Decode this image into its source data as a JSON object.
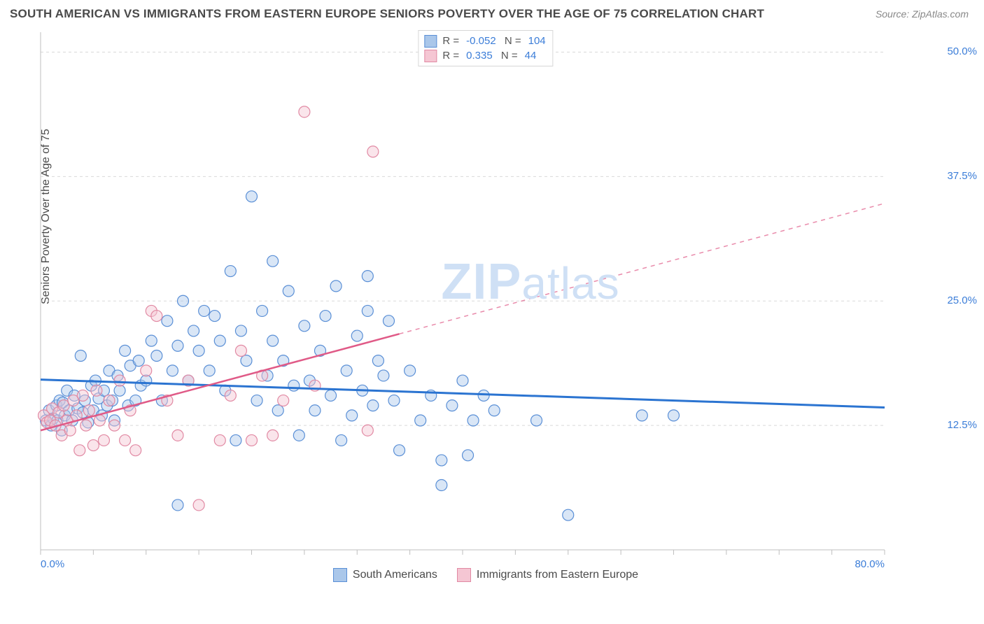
{
  "title": "SOUTH AMERICAN VS IMMIGRANTS FROM EASTERN EUROPE SENIORS POVERTY OVER THE AGE OF 75 CORRELATION CHART",
  "source": "Source: ZipAtlas.com",
  "watermark_bold": "ZIP",
  "watermark_rest": "atlas",
  "chart": {
    "type": "scatter",
    "background_color": "#ffffff",
    "grid_color": "#d9d9d9",
    "axis_color": "#bfbfbf",
    "tick_label_color": "#3b7dd8",
    "ylabel": "Seniors Poverty Over the Age of 75",
    "ylabel_fontsize": 16,
    "xlim": [
      0,
      80
    ],
    "ylim": [
      0,
      52
    ],
    "x_ticks": [
      0,
      5,
      10,
      15,
      20,
      25,
      30,
      35,
      40,
      45,
      50,
      55,
      60,
      65,
      70,
      75,
      80
    ],
    "x_tick_labels": {
      "0": "0.0%",
      "80": "80.0%"
    },
    "y_ticks": [
      12.5,
      25.0,
      37.5,
      50.0
    ],
    "y_tick_labels": [
      "12.5%",
      "25.0%",
      "37.5%",
      "50.0%"
    ],
    "marker_radius": 8,
    "marker_fill_opacity": 0.45,
    "marker_stroke_width": 1.2,
    "series": [
      {
        "name": "South Americans",
        "fill": "#aac7ea",
        "stroke": "#5a8fd6",
        "regression": {
          "slope": -0.035,
          "intercept": 17.1,
          "color": "#2b74d1",
          "width": 3,
          "solid_until_x": 80
        },
        "stats": {
          "R": "-0.052",
          "N": "104"
        },
        "points": [
          [
            0.5,
            13.0
          ],
          [
            0.8,
            14.0
          ],
          [
            1.0,
            12.5
          ],
          [
            1.2,
            13.2
          ],
          [
            1.5,
            14.5
          ],
          [
            1.6,
            13.0
          ],
          [
            1.8,
            15.0
          ],
          [
            2.0,
            12.0
          ],
          [
            2.1,
            14.8
          ],
          [
            2.3,
            13.5
          ],
          [
            2.5,
            16.0
          ],
          [
            2.7,
            14.0
          ],
          [
            3.0,
            13.0
          ],
          [
            3.2,
            15.5
          ],
          [
            3.5,
            14.2
          ],
          [
            3.8,
            19.5
          ],
          [
            4.0,
            13.8
          ],
          [
            4.2,
            15.0
          ],
          [
            4.5,
            12.8
          ],
          [
            4.8,
            16.5
          ],
          [
            5.0,
            14.0
          ],
          [
            5.2,
            17.0
          ],
          [
            5.5,
            15.2
          ],
          [
            5.8,
            13.5
          ],
          [
            6.0,
            16.0
          ],
          [
            6.3,
            14.5
          ],
          [
            6.5,
            18.0
          ],
          [
            6.8,
            15.0
          ],
          [
            7.0,
            13.0
          ],
          [
            7.3,
            17.5
          ],
          [
            7.5,
            16.0
          ],
          [
            8.0,
            20.0
          ],
          [
            8.3,
            14.5
          ],
          [
            8.5,
            18.5
          ],
          [
            9.0,
            15.0
          ],
          [
            9.3,
            19.0
          ],
          [
            9.5,
            16.5
          ],
          [
            10.0,
            17.0
          ],
          [
            10.5,
            21.0
          ],
          [
            11.0,
            19.5
          ],
          [
            11.5,
            15.0
          ],
          [
            12.0,
            23.0
          ],
          [
            12.5,
            18.0
          ],
          [
            13.0,
            20.5
          ],
          [
            13.5,
            25.0
          ],
          [
            14.0,
            17.0
          ],
          [
            14.5,
            22.0
          ],
          [
            15.0,
            20.0
          ],
          [
            15.5,
            24.0
          ],
          [
            16.0,
            18.0
          ],
          [
            16.5,
            23.5
          ],
          [
            17.0,
            21.0
          ],
          [
            17.5,
            16.0
          ],
          [
            18.0,
            28.0
          ],
          [
            18.5,
            11.0
          ],
          [
            19.0,
            22.0
          ],
          [
            19.5,
            19.0
          ],
          [
            20.0,
            35.5
          ],
          [
            20.5,
            15.0
          ],
          [
            21.0,
            24.0
          ],
          [
            21.5,
            17.5
          ],
          [
            22.0,
            21.0
          ],
          [
            22.5,
            14.0
          ],
          [
            23.0,
            19.0
          ],
          [
            23.5,
            26.0
          ],
          [
            24.0,
            16.5
          ],
          [
            24.5,
            11.5
          ],
          [
            25.0,
            22.5
          ],
          [
            25.5,
            17.0
          ],
          [
            26.0,
            14.0
          ],
          [
            26.5,
            20.0
          ],
          [
            27.0,
            23.5
          ],
          [
            27.5,
            15.5
          ],
          [
            28.0,
            26.5
          ],
          [
            28.5,
            11.0
          ],
          [
            29.0,
            18.0
          ],
          [
            29.5,
            13.5
          ],
          [
            30.0,
            21.5
          ],
          [
            30.5,
            16.0
          ],
          [
            31.0,
            24.0
          ],
          [
            31.5,
            14.5
          ],
          [
            32.0,
            19.0
          ],
          [
            32.5,
            17.5
          ],
          [
            33.0,
            23.0
          ],
          [
            33.5,
            15.0
          ],
          [
            34.0,
            10.0
          ],
          [
            35.0,
            18.0
          ],
          [
            36.0,
            13.0
          ],
          [
            37.0,
            15.5
          ],
          [
            38.0,
            9.0
          ],
          [
            39.0,
            14.5
          ],
          [
            40.0,
            17.0
          ],
          [
            40.5,
            9.5
          ],
          [
            41.0,
            13.0
          ],
          [
            38.0,
            6.5
          ],
          [
            42.0,
            15.5
          ],
          [
            43.0,
            14.0
          ],
          [
            47.0,
            13.0
          ],
          [
            50.0,
            3.5
          ],
          [
            57.0,
            13.5
          ],
          [
            60.0,
            13.5
          ],
          [
            13.0,
            4.5
          ],
          [
            22.0,
            29.0
          ],
          [
            31.0,
            27.5
          ]
        ]
      },
      {
        "name": "Immigrants from Eastern Europe",
        "fill": "#f5c6d3",
        "stroke": "#e189a3",
        "regression": {
          "slope": 0.285,
          "intercept": 12.0,
          "color": "#e05a87",
          "width": 2.5,
          "solid_until_x": 34
        },
        "stats": {
          "R": "0.335",
          "N": "44"
        },
        "points": [
          [
            0.3,
            13.5
          ],
          [
            0.6,
            12.8
          ],
          [
            0.9,
            13.0
          ],
          [
            1.1,
            14.2
          ],
          [
            1.4,
            12.5
          ],
          [
            1.7,
            13.8
          ],
          [
            2.0,
            11.5
          ],
          [
            2.2,
            14.5
          ],
          [
            2.5,
            13.0
          ],
          [
            2.8,
            12.0
          ],
          [
            3.1,
            15.0
          ],
          [
            3.4,
            13.5
          ],
          [
            3.7,
            10.0
          ],
          [
            4.0,
            15.5
          ],
          [
            4.3,
            12.5
          ],
          [
            4.6,
            14.0
          ],
          [
            5.0,
            10.5
          ],
          [
            5.3,
            16.0
          ],
          [
            5.6,
            13.0
          ],
          [
            6.0,
            11.0
          ],
          [
            6.5,
            15.0
          ],
          [
            7.0,
            12.5
          ],
          [
            7.5,
            17.0
          ],
          [
            8.0,
            11.0
          ],
          [
            8.5,
            14.0
          ],
          [
            9.0,
            10.0
          ],
          [
            10.0,
            18.0
          ],
          [
            10.5,
            24.0
          ],
          [
            11.0,
            23.5
          ],
          [
            12.0,
            15.0
          ],
          [
            13.0,
            11.5
          ],
          [
            14.0,
            17.0
          ],
          [
            15.0,
            4.5
          ],
          [
            17.0,
            11.0
          ],
          [
            18.0,
            15.5
          ],
          [
            19.0,
            20.0
          ],
          [
            20.0,
            11.0
          ],
          [
            21.0,
            17.5
          ],
          [
            22.0,
            11.5
          ],
          [
            23.0,
            15.0
          ],
          [
            25.0,
            44.0
          ],
          [
            26.0,
            16.5
          ],
          [
            31.0,
            12.0
          ],
          [
            31.5,
            40.0
          ]
        ]
      }
    ],
    "legend_bottom": [
      {
        "label": "South Americans",
        "fill": "#aac7ea",
        "stroke": "#5a8fd6"
      },
      {
        "label": "Immigrants from Eastern Europe",
        "fill": "#f5c6d3",
        "stroke": "#e189a3"
      }
    ]
  }
}
